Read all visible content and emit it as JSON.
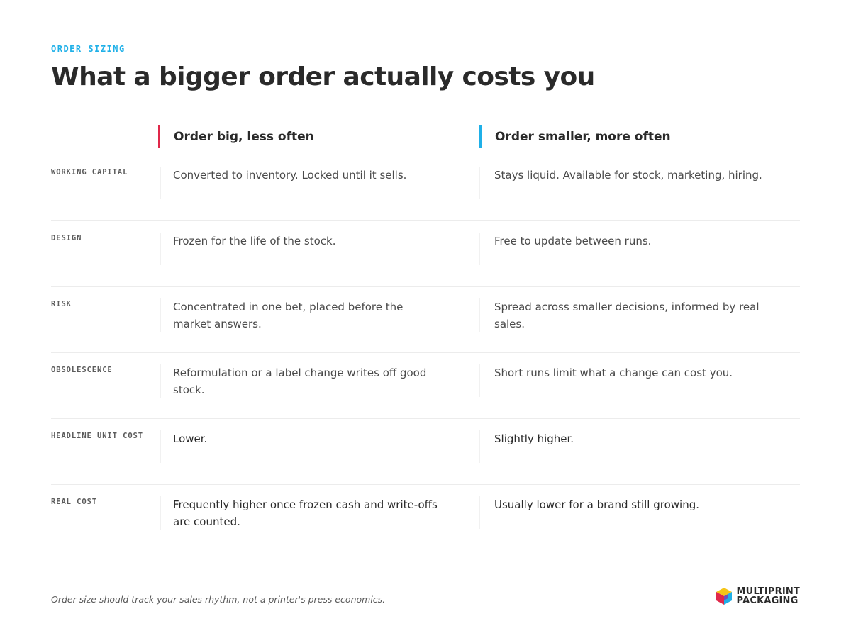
{
  "eyebrow": "ORDER SIZING",
  "title": "What a bigger order actually costs you",
  "columns": {
    "a": {
      "label": "Order big, less often",
      "accent": "#e0284a"
    },
    "b": {
      "label": "Order smaller, more often",
      "accent": "#1fb0e8"
    }
  },
  "rows": [
    {
      "label": "WORKING CAPITAL",
      "a": "Converted to inventory. Locked until it sells.",
      "b": "Stays liquid. Available for stock, marketing, hiring."
    },
    {
      "label": "DESIGN",
      "a": "Frozen for the life of the stock.",
      "b": "Free to update between runs."
    },
    {
      "label": "RISK",
      "a": "Concentrated in one bet, placed before the market answers.",
      "b": "Spread across smaller decisions, informed by real sales."
    },
    {
      "label": "OBSOLESCENCE",
      "a": "Reformulation or a label change writes off good stock.",
      "b": "Short runs limit what a change can cost you."
    },
    {
      "label": "HEADLINE UNIT COST",
      "a": "Lower.",
      "b": "Slightly higher."
    },
    {
      "label": "REAL COST",
      "a": "Frequently higher once frozen cash and write-offs are counted.",
      "b": "Usually lower for a brand still growing."
    }
  ],
  "footnote": "Order size should track your sales rhythm, not a printer's press economics.",
  "logo": {
    "line1": "MULTIPRINT",
    "line2": "PACKAGING",
    "icon": "cube-logo-icon"
  }
}
